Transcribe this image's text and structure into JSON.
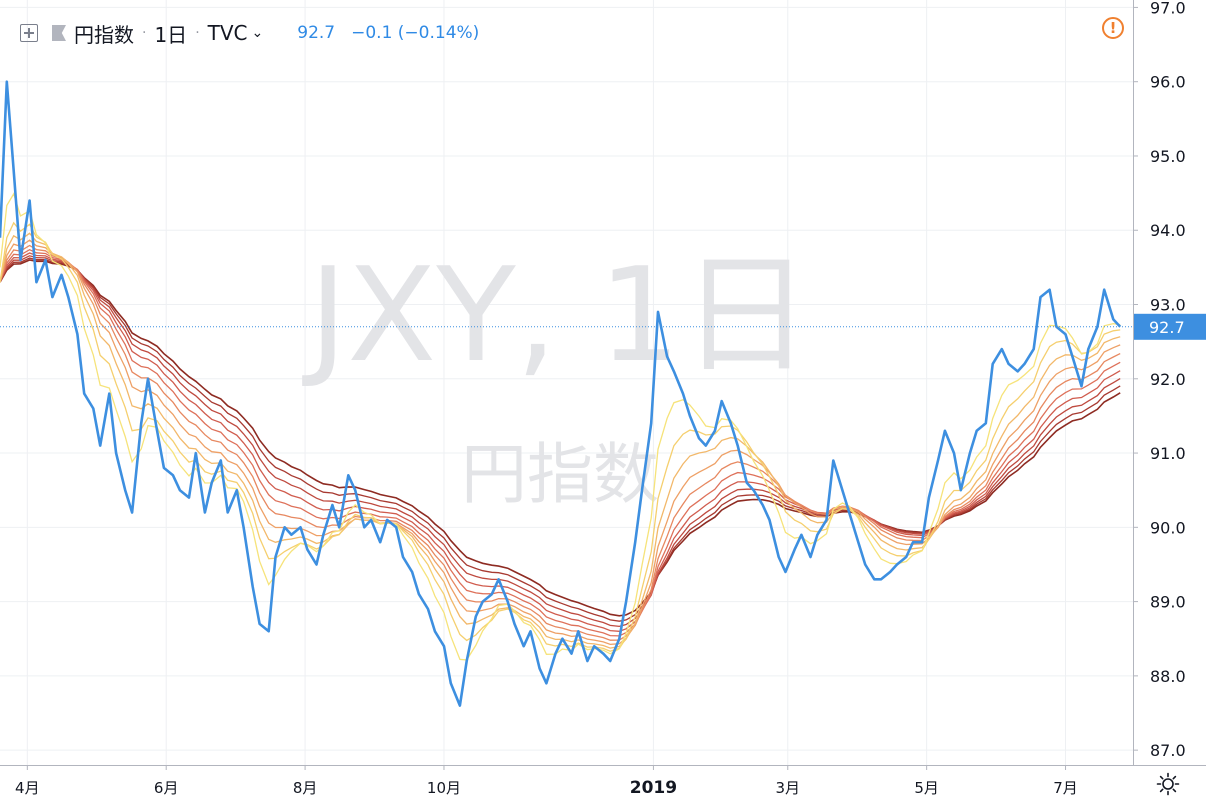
{
  "header": {
    "symbol_name": "円指数",
    "interval": "1日",
    "exchange": "TVC",
    "last_price": "92.7",
    "change": "−0.1 (−0.14%)"
  },
  "watermark": {
    "main": "JXY, 1日",
    "sub": "円指数"
  },
  "price_label": "92.7",
  "icons": {
    "add_compare": "plus-square-icon",
    "symbol_flag": "flag-icon",
    "interval_dropdown": "chevron-down-icon",
    "alert": "exclamation-circle-icon",
    "settings": "gear-icon"
  },
  "colors": {
    "price_line": "#3d8fe0",
    "ribbon": [
      "#f6e37a",
      "#f5cf6e",
      "#f2b86a",
      "#eea066",
      "#e78860",
      "#de715a",
      "#d05c4e",
      "#bf4a3f",
      "#a83a31",
      "#8e2b22"
    ],
    "alert": "#f0802f",
    "grid": "#eef0f3"
  },
  "chart_data": {
    "type": "line",
    "x_axis": {
      "type": "date",
      "ticks": [
        {
          "date": "2018-04-01",
          "label": "4月"
        },
        {
          "date": "2018-06-01",
          "label": "6月"
        },
        {
          "date": "2018-08-01",
          "label": "8月"
        },
        {
          "date": "2018-10-01",
          "label": "10月"
        },
        {
          "date": "2019-01-01",
          "label": "2019"
        },
        {
          "date": "2019-03-01",
          "label": "3月"
        },
        {
          "date": "2019-05-01",
          "label": "5月"
        },
        {
          "date": "2019-07-01",
          "label": "7月"
        }
      ],
      "range": [
        "2018-03-20",
        "2019-07-28"
      ]
    },
    "y_axis": {
      "ticks": [
        "87.0",
        "88.0",
        "89.0",
        "90.0",
        "91.0",
        "92.0",
        "93.0",
        "94.0",
        "95.0",
        "96.0",
        "97.0"
      ],
      "ylim": [
        86.8,
        97.1
      ],
      "position": "right"
    },
    "grid": true,
    "last_value": 92.7,
    "series": [
      {
        "points": [
          [
            "2018-03-20",
            93.9
          ],
          [
            "2018-03-23",
            96.0
          ],
          [
            "2018-03-26",
            94.8
          ],
          [
            "2018-03-29",
            93.6
          ],
          [
            "2018-04-02",
            94.4
          ],
          [
            "2018-04-05",
            93.3
          ],
          [
            "2018-04-09",
            93.6
          ],
          [
            "2018-04-12",
            93.1
          ],
          [
            "2018-04-16",
            93.4
          ],
          [
            "2018-04-19",
            93.1
          ],
          [
            "2018-04-23",
            92.6
          ],
          [
            "2018-04-26",
            91.8
          ],
          [
            "2018-04-30",
            91.6
          ],
          [
            "2018-05-03",
            91.1
          ],
          [
            "2018-05-07",
            91.8
          ],
          [
            "2018-05-10",
            91.0
          ],
          [
            "2018-05-14",
            90.5
          ],
          [
            "2018-05-17",
            90.2
          ],
          [
            "2018-05-21",
            91.4
          ],
          [
            "2018-05-24",
            92.0
          ],
          [
            "2018-05-28",
            91.3
          ],
          [
            "2018-05-31",
            90.8
          ],
          [
            "2018-06-04",
            90.7
          ],
          [
            "2018-06-07",
            90.5
          ],
          [
            "2018-06-11",
            90.4
          ],
          [
            "2018-06-14",
            91.0
          ],
          [
            "2018-06-18",
            90.2
          ],
          [
            "2018-06-21",
            90.6
          ],
          [
            "2018-06-25",
            90.9
          ],
          [
            "2018-06-28",
            90.2
          ],
          [
            "2018-07-02",
            90.5
          ],
          [
            "2018-07-05",
            90.0
          ],
          [
            "2018-07-09",
            89.2
          ],
          [
            "2018-07-12",
            88.7
          ],
          [
            "2018-07-16",
            88.6
          ],
          [
            "2018-07-19",
            89.6
          ],
          [
            "2018-07-23",
            90.0
          ],
          [
            "2018-07-26",
            89.9
          ],
          [
            "2018-07-30",
            90.0
          ],
          [
            "2018-08-02",
            89.7
          ],
          [
            "2018-08-06",
            89.5
          ],
          [
            "2018-08-09",
            89.9
          ],
          [
            "2018-08-13",
            90.3
          ],
          [
            "2018-08-16",
            90.0
          ],
          [
            "2018-08-20",
            90.7
          ],
          [
            "2018-08-23",
            90.5
          ],
          [
            "2018-08-27",
            90.0
          ],
          [
            "2018-08-30",
            90.1
          ],
          [
            "2018-09-03",
            89.8
          ],
          [
            "2018-09-06",
            90.1
          ],
          [
            "2018-09-10",
            90.0
          ],
          [
            "2018-09-13",
            89.6
          ],
          [
            "2018-09-17",
            89.4
          ],
          [
            "2018-09-20",
            89.1
          ],
          [
            "2018-09-24",
            88.9
          ],
          [
            "2018-09-27",
            88.6
          ],
          [
            "2018-10-01",
            88.4
          ],
          [
            "2018-10-04",
            87.9
          ],
          [
            "2018-10-08",
            87.6
          ],
          [
            "2018-10-11",
            88.2
          ],
          [
            "2018-10-15",
            88.8
          ],
          [
            "2018-10-18",
            89.0
          ],
          [
            "2018-10-22",
            89.1
          ],
          [
            "2018-10-25",
            89.3
          ],
          [
            "2018-10-29",
            89.0
          ],
          [
            "2018-11-01",
            88.7
          ],
          [
            "2018-11-05",
            88.4
          ],
          [
            "2018-11-08",
            88.6
          ],
          [
            "2018-11-12",
            88.1
          ],
          [
            "2018-11-15",
            87.9
          ],
          [
            "2018-11-19",
            88.3
          ],
          [
            "2018-11-22",
            88.5
          ],
          [
            "2018-11-26",
            88.3
          ],
          [
            "2018-11-29",
            88.6
          ],
          [
            "2018-12-03",
            88.2
          ],
          [
            "2018-12-06",
            88.4
          ],
          [
            "2018-12-10",
            88.3
          ],
          [
            "2018-12-13",
            88.2
          ],
          [
            "2018-12-17",
            88.5
          ],
          [
            "2018-12-20",
            89.0
          ],
          [
            "2018-12-24",
            89.8
          ],
          [
            "2018-12-27",
            90.5
          ],
          [
            "2018-12-31",
            91.4
          ],
          [
            "2019-01-03",
            92.9
          ],
          [
            "2019-01-07",
            92.3
          ],
          [
            "2019-01-10",
            92.1
          ],
          [
            "2019-01-14",
            91.8
          ],
          [
            "2019-01-17",
            91.5
          ],
          [
            "2019-01-21",
            91.2
          ],
          [
            "2019-01-24",
            91.1
          ],
          [
            "2019-01-28",
            91.3
          ],
          [
            "2019-01-31",
            91.7
          ],
          [
            "2019-02-04",
            91.4
          ],
          [
            "2019-02-07",
            91.1
          ],
          [
            "2019-02-11",
            90.6
          ],
          [
            "2019-02-14",
            90.5
          ],
          [
            "2019-02-18",
            90.3
          ],
          [
            "2019-02-21",
            90.1
          ],
          [
            "2019-02-25",
            89.6
          ],
          [
            "2019-02-28",
            89.4
          ],
          [
            "2019-03-04",
            89.7
          ],
          [
            "2019-03-07",
            89.9
          ],
          [
            "2019-03-11",
            89.6
          ],
          [
            "2019-03-14",
            89.9
          ],
          [
            "2019-03-18",
            90.1
          ],
          [
            "2019-03-21",
            90.9
          ],
          [
            "2019-03-25",
            90.5
          ],
          [
            "2019-03-28",
            90.2
          ],
          [
            "2019-04-01",
            89.8
          ],
          [
            "2019-04-04",
            89.5
          ],
          [
            "2019-04-08",
            89.3
          ],
          [
            "2019-04-11",
            89.3
          ],
          [
            "2019-04-15",
            89.4
          ],
          [
            "2019-04-18",
            89.5
          ],
          [
            "2019-04-22",
            89.6
          ],
          [
            "2019-04-25",
            89.8
          ],
          [
            "2019-04-29",
            89.8
          ],
          [
            "2019-05-02",
            90.4
          ],
          [
            "2019-05-06",
            90.9
          ],
          [
            "2019-05-09",
            91.3
          ],
          [
            "2019-05-13",
            91.0
          ],
          [
            "2019-05-16",
            90.5
          ],
          [
            "2019-05-20",
            91.0
          ],
          [
            "2019-05-23",
            91.3
          ],
          [
            "2019-05-27",
            91.4
          ],
          [
            "2019-05-30",
            92.2
          ],
          [
            "2019-06-03",
            92.4
          ],
          [
            "2019-06-06",
            92.2
          ],
          [
            "2019-06-10",
            92.1
          ],
          [
            "2019-06-13",
            92.2
          ],
          [
            "2019-06-17",
            92.4
          ],
          [
            "2019-06-20",
            93.1
          ],
          [
            "2019-06-24",
            93.2
          ],
          [
            "2019-06-27",
            92.7
          ],
          [
            "2019-07-01",
            92.6
          ],
          [
            "2019-07-04",
            92.3
          ],
          [
            "2019-07-08",
            91.9
          ],
          [
            "2019-07-11",
            92.4
          ],
          [
            "2019-07-15",
            92.7
          ],
          [
            "2019-07-18",
            93.2
          ],
          [
            "2019-07-22",
            92.8
          ],
          [
            "2019-07-25",
            92.7
          ]
        ]
      }
    ],
    "ribbon_ema_periods": [
      5,
      8,
      11,
      14,
      17,
      20,
      23,
      26,
      29,
      32
    ]
  }
}
